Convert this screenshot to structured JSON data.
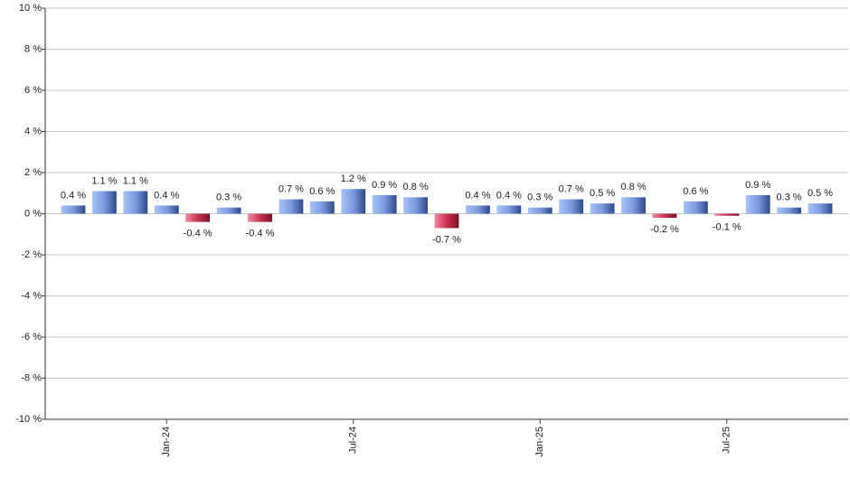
{
  "chart_data": {
    "type": "bar",
    "categories": [
      null,
      null,
      null,
      "Jan-24",
      null,
      null,
      null,
      null,
      null,
      "Jul-24",
      null,
      null,
      null,
      null,
      null,
      "Jan-25",
      null,
      null,
      null,
      null,
      null,
      "Jul-25",
      null,
      null,
      null
    ],
    "values": [
      0.4,
      1.1,
      1.1,
      0.4,
      -0.4,
      0.3,
      -0.4,
      0.7,
      0.6,
      1.2,
      0.9,
      0.8,
      -0.7,
      0.4,
      0.4,
      0.3,
      0.7,
      0.5,
      0.8,
      -0.2,
      0.6,
      -0.1,
      0.9,
      0.3,
      0.5
    ],
    "value_labels": [
      "0.4 %",
      "1.1 %",
      "1.1 %",
      "0.4 %",
      "-0.4 %",
      "0.3 %",
      "-0.4 %",
      "0.7 %",
      "0.6 %",
      "1.2 %",
      "0.9 %",
      "0.8 %",
      "-0.7 %",
      "0.4 %",
      "0.4 %",
      "0.3 %",
      "0.7 %",
      "0.5 %",
      "0.8 %",
      "-0.2 %",
      "0.6 %",
      "-0.1 %",
      "0.9 %",
      "0.3 %",
      "0.5 %"
    ],
    "color": "#7b9be0",
    "negative_color": "#cc3355",
    "ylim": [
      -10,
      10
    ],
    "yticks": [
      {
        "value": -10,
        "label": "-10 %"
      },
      {
        "value": -8,
        "label": "-8 %"
      },
      {
        "value": -6,
        "label": "-6 %"
      },
      {
        "value": -4,
        "label": "-4 %"
      },
      {
        "value": -2,
        "label": "-2 %"
      },
      {
        "value": 0,
        "label": "0 %"
      },
      {
        "value": 2,
        "label": "2 %"
      },
      {
        "value": 4,
        "label": "4 %"
      },
      {
        "value": 6,
        "label": "6 %"
      },
      {
        "value": 8,
        "label": "8 %"
      },
      {
        "value": 10,
        "label": "10 %"
      }
    ],
    "grid": true
  }
}
